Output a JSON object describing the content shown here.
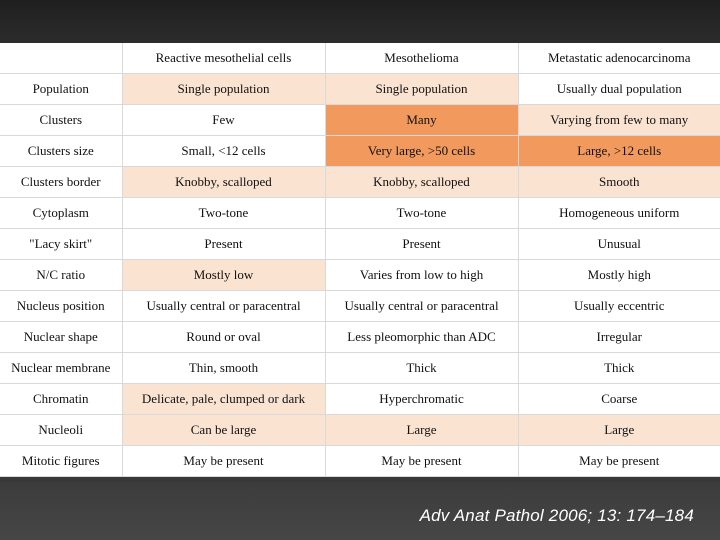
{
  "table": {
    "headers": [
      "",
      "Reactive mesothelial cells",
      "Mesothelioma",
      "Metastatic adenocarcinoma"
    ],
    "rows": [
      {
        "cells": [
          "Population",
          "Single population",
          "Single population",
          "Usually dual population"
        ],
        "highlight": [
          "none",
          "light",
          "light",
          "none"
        ]
      },
      {
        "cells": [
          "Clusters",
          "Few",
          "Many",
          "Varying from few to many"
        ],
        "highlight": [
          "none",
          "none",
          "orange",
          "light"
        ]
      },
      {
        "cells": [
          "Clusters size",
          "Small, <12 cells",
          "Very large, >50 cells",
          "Large, >12 cells"
        ],
        "highlight": [
          "none",
          "none",
          "orange",
          "orange"
        ]
      },
      {
        "cells": [
          "Clusters border",
          "Knobby, scalloped",
          "Knobby, scalloped",
          "Smooth"
        ],
        "highlight": [
          "none",
          "light",
          "light",
          "light"
        ]
      },
      {
        "cells": [
          "Cytoplasm",
          "Two-tone",
          "Two-tone",
          "Homogeneous uniform"
        ],
        "highlight": [
          "none",
          "none",
          "none",
          "none"
        ]
      },
      {
        "cells": [
          "\"Lacy skirt\"",
          "Present",
          "Present",
          "Unusual"
        ],
        "highlight": [
          "none",
          "none",
          "none",
          "none"
        ]
      },
      {
        "cells": [
          "N/C ratio",
          "Mostly low",
          "Varies from low to high",
          "Mostly high"
        ],
        "highlight": [
          "none",
          "light",
          "none",
          "none"
        ]
      },
      {
        "cells": [
          "Nucleus position",
          "Usually central or paracentral",
          "Usually central or paracentral",
          "Usually eccentric"
        ],
        "highlight": [
          "none",
          "none",
          "none",
          "none"
        ]
      },
      {
        "cells": [
          "Nuclear shape",
          "Round or oval",
          "Less pleomorphic than ADC",
          "Irregular"
        ],
        "highlight": [
          "none",
          "none",
          "none",
          "none"
        ]
      },
      {
        "cells": [
          "Nuclear membrane",
          "Thin, smooth",
          "Thick",
          "Thick"
        ],
        "highlight": [
          "none",
          "none",
          "none",
          "none"
        ]
      },
      {
        "cells": [
          "Chromatin",
          "Delicate, pale, clumped or dark",
          "Hyperchromatic",
          "Coarse"
        ],
        "highlight": [
          "none",
          "light",
          "none",
          "none"
        ]
      },
      {
        "cells": [
          "Nucleoli",
          "Can be large",
          "Large",
          "Large"
        ],
        "highlight": [
          "none",
          "light",
          "light",
          "light"
        ]
      },
      {
        "cells": [
          "Mitotic figures",
          "May be present",
          "May be present",
          "May be present"
        ],
        "highlight": [
          "none",
          "none",
          "none",
          "none"
        ]
      }
    ]
  },
  "colors": {
    "light": "#fbe3d2",
    "orange": "#f29a5e"
  },
  "citation": "Adv Anat Pathol 2006; 13: 174–184"
}
